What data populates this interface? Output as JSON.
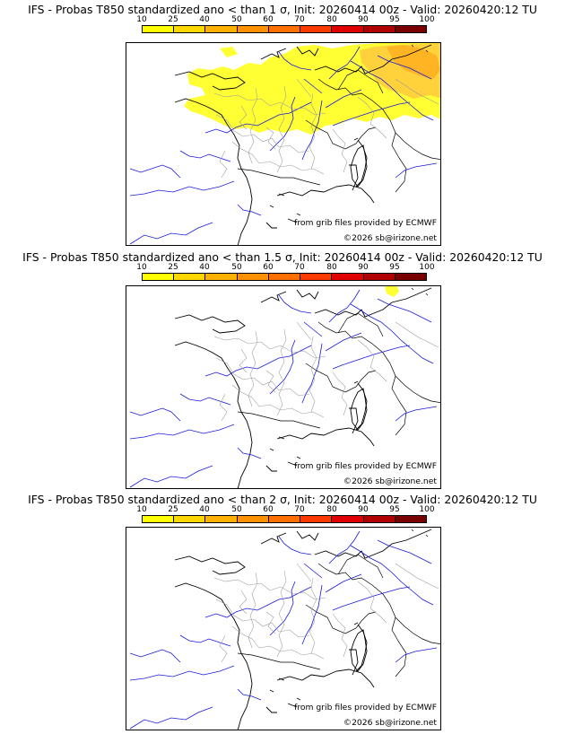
{
  "scale": {
    "ticks": [
      "10",
      "25",
      "40",
      "50",
      "60",
      "70",
      "80",
      "90",
      "95",
      "100"
    ],
    "colors": [
      "#ffff00",
      "#ffd700",
      "#ffb000",
      "#ff9000",
      "#ff7000",
      "#ff3a00",
      "#e00000",
      "#b00000",
      "#7a0000"
    ]
  },
  "credits": {
    "source": "from grib files provided by ECMWF",
    "copyright": "©2026 sb@irizone.net"
  },
  "panels": [
    {
      "title": "IFS - Probas T850  standardized ano < than 1 σ, Init: 20260414 00z - Valid: 20260420:12 TU"
    },
    {
      "title": "IFS - Probas T850  standardized ano < than 1.5 σ, Init: 20260414 00z - Valid: 20260420:12 TU"
    },
    {
      "title": "IFS - Probas T850  standardized ano < than 2 σ, Init: 20260414 00z - Valid: 20260420:12 TU"
    }
  ]
}
